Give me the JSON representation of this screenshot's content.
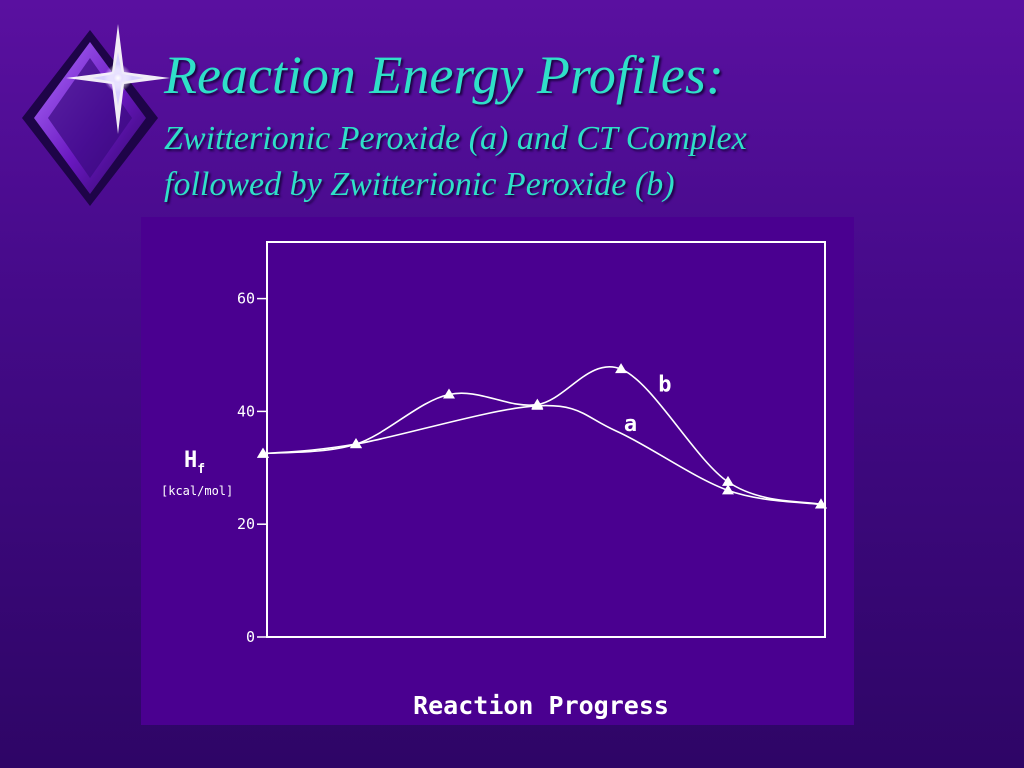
{
  "slide": {
    "title": "Reaction Energy Profiles:",
    "subtitle_line1": "Zwitterionic Peroxide (a) and CT Complex",
    "subtitle_line2": "followed by Zwitterionic Peroxide (b)"
  },
  "colors": {
    "title_text": "#2fe0c8",
    "chart_background": "#4a0090",
    "chart_foreground": "#ffffff"
  },
  "chart_data": {
    "type": "line",
    "ylabel_main": "H",
    "ylabel_sub": "f",
    "ylabel_unit": "[kcal/mol]",
    "xlabel": "Reaction Progress",
    "ylim": [
      0,
      70
    ],
    "yticks": [
      0,
      20,
      40,
      60
    ],
    "grid": false,
    "legend": "none",
    "series": [
      {
        "name": "a",
        "points": [
          [
            0,
            32.5
          ],
          [
            1,
            34.2
          ],
          [
            2.95,
            41
          ],
          [
            3.8,
            36.5
          ],
          [
            5,
            26
          ],
          [
            6,
            23.5
          ]
        ],
        "markers": [
          [
            0,
            32.5
          ],
          [
            1,
            34.2
          ],
          [
            2.95,
            41
          ],
          [
            5,
            26
          ],
          [
            6,
            23.5
          ]
        ],
        "label_at": [
          3.88,
          36.5
        ]
      },
      {
        "name": "b",
        "points": [
          [
            0,
            32.5
          ],
          [
            1,
            34.2
          ],
          [
            2,
            43
          ],
          [
            2.95,
            41.2
          ],
          [
            3.85,
            47.5
          ],
          [
            5,
            27.5
          ],
          [
            6,
            23.5
          ]
        ],
        "markers": [
          [
            0,
            32.5
          ],
          [
            1,
            34.2
          ],
          [
            2,
            43
          ],
          [
            2.95,
            41.2
          ],
          [
            3.85,
            47.5
          ],
          [
            5,
            27.5
          ],
          [
            6,
            23.5
          ]
        ],
        "label_at": [
          4.25,
          43.5
        ]
      }
    ]
  }
}
